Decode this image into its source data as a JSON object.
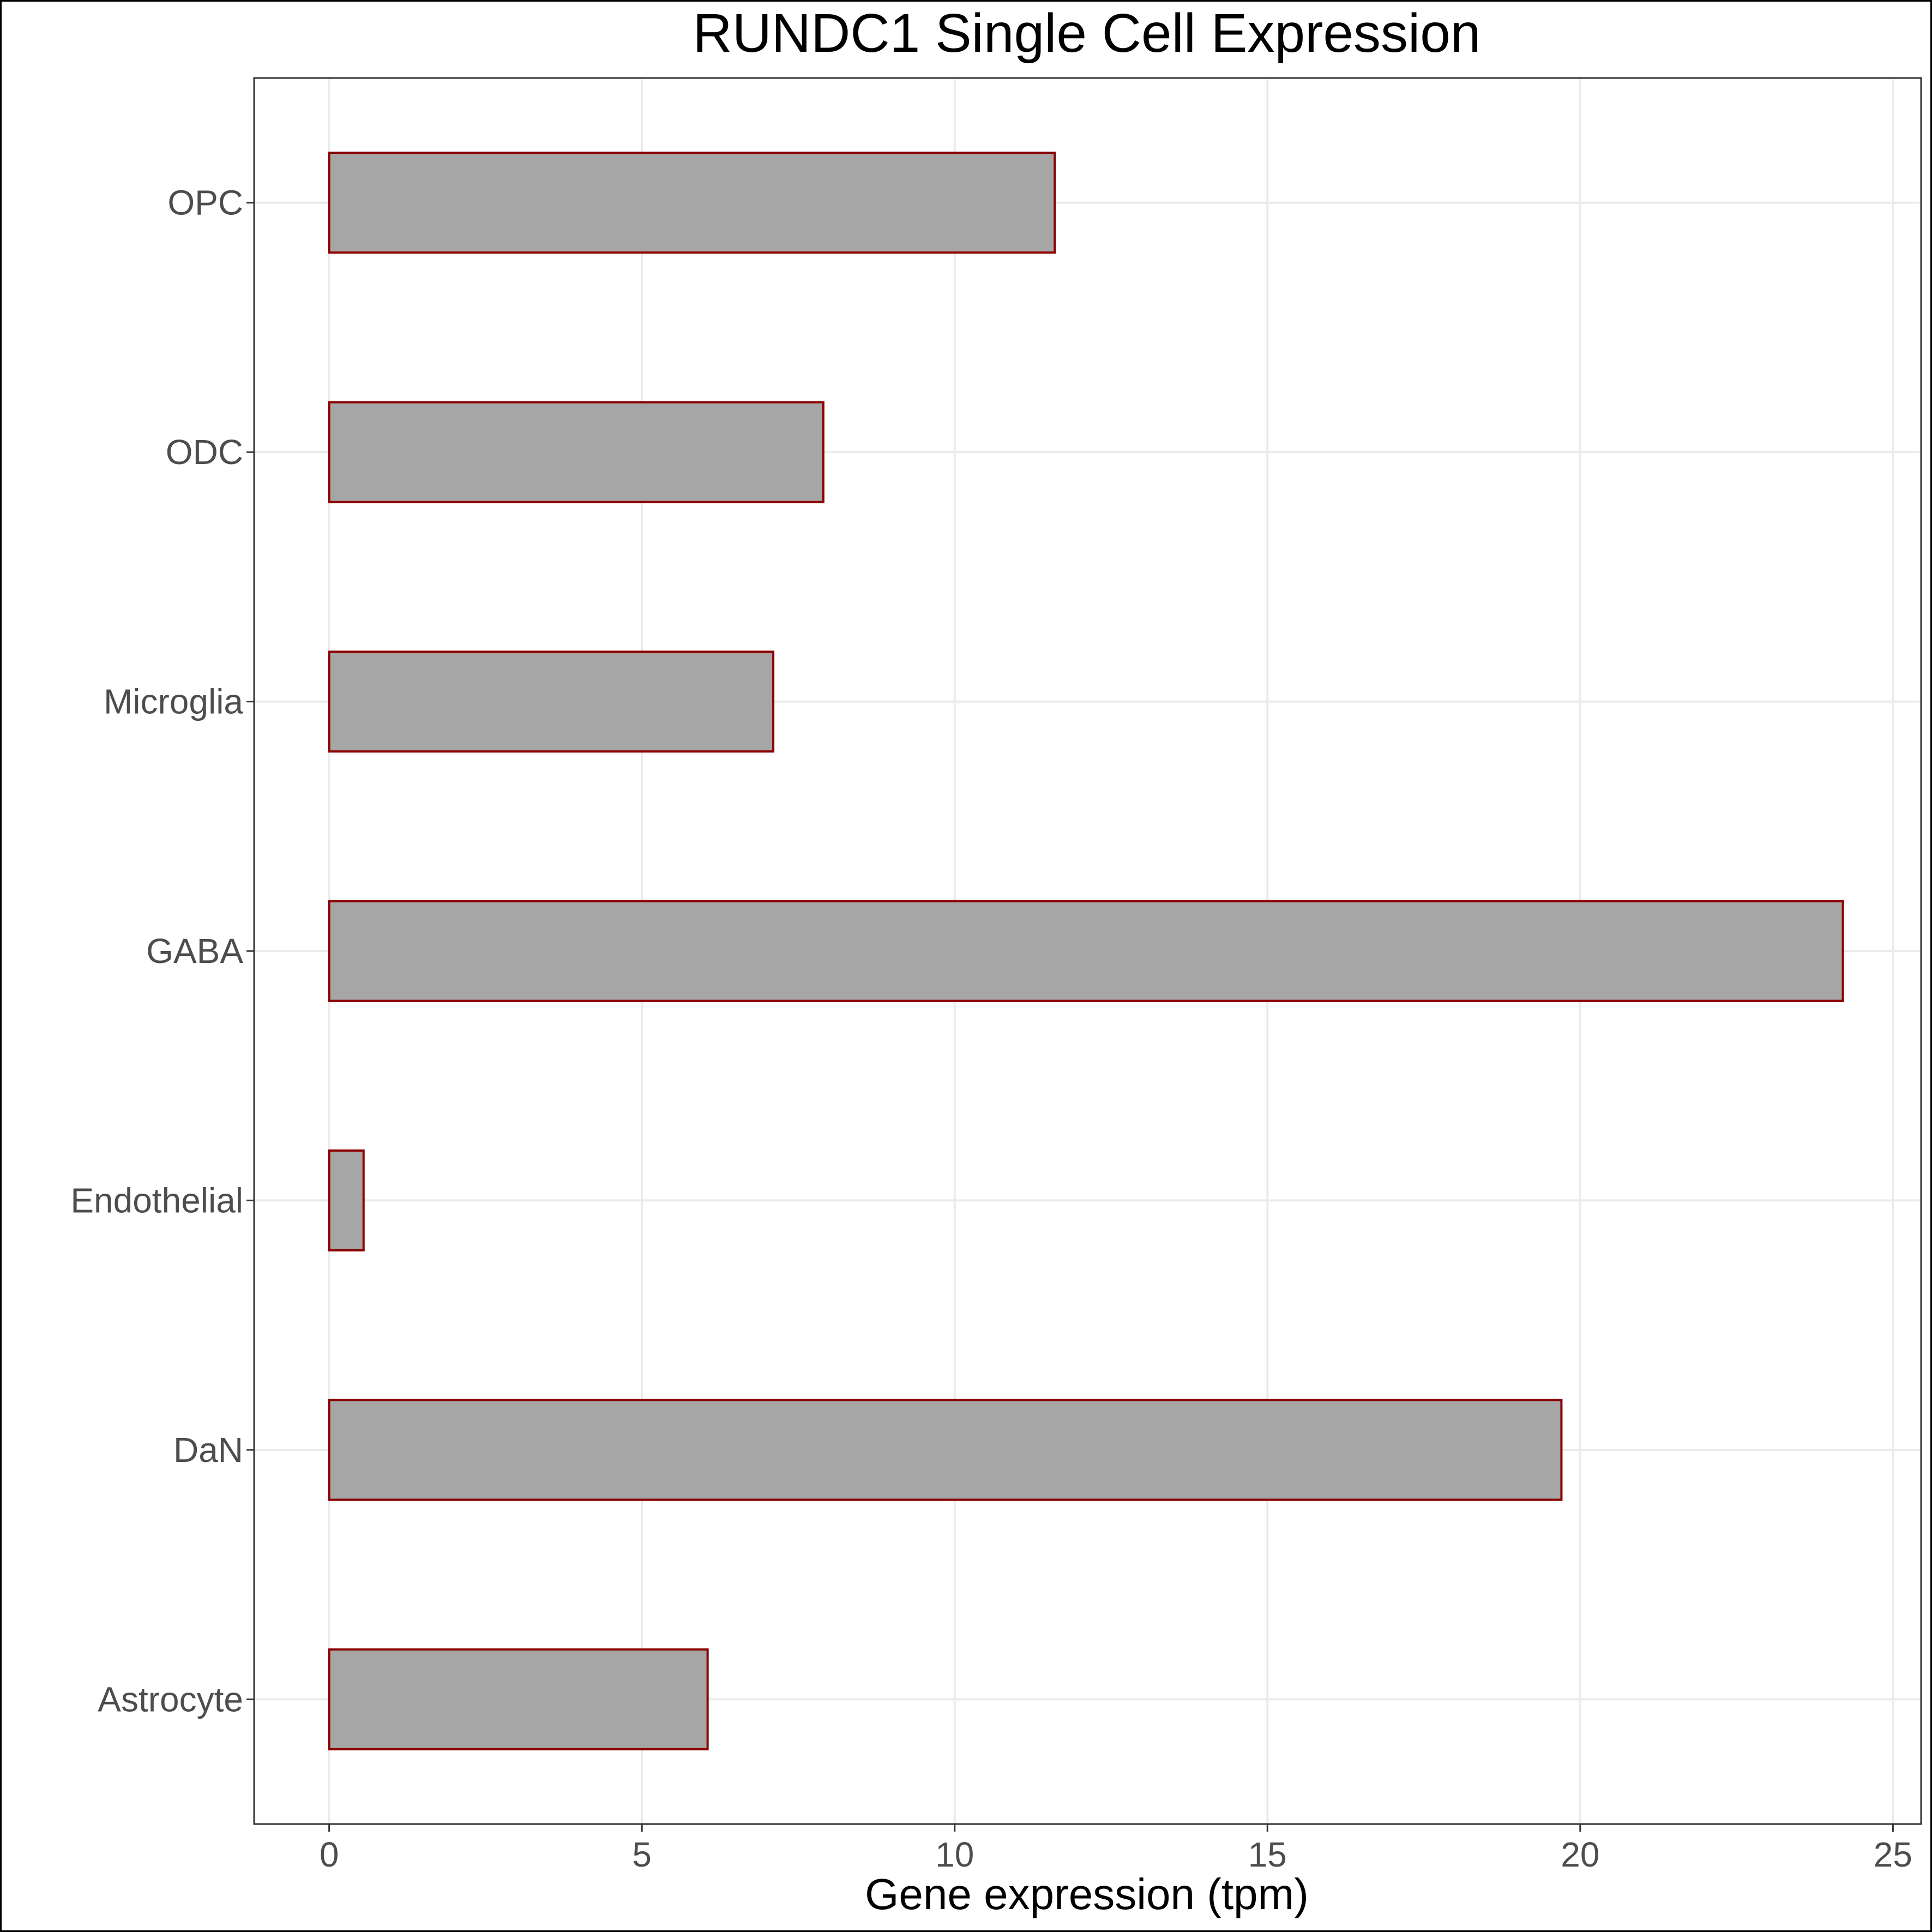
{
  "chart_data": {
    "type": "bar",
    "orientation": "horizontal",
    "title": "RUNDC1 Single Cell Expression",
    "xlabel": "Gene expression (tpm)",
    "ylabel": "",
    "categories": [
      "OPC",
      "ODC",
      "Microglia",
      "GABA",
      "Endothelial",
      "DaN",
      "Astrocyte"
    ],
    "values": [
      11.6,
      7.9,
      7.1,
      24.2,
      0.55,
      19.7,
      6.05
    ],
    "xlim": [
      -1.2,
      25.45
    ],
    "xticks": [
      0,
      5,
      10,
      15,
      20,
      25
    ],
    "grid": true,
    "legend": "none",
    "colors": {
      "bar_fill": "#a6a6a6",
      "bar_border": "#8b0000",
      "grid": "#ebebeb",
      "panel_border": "#333333"
    }
  }
}
